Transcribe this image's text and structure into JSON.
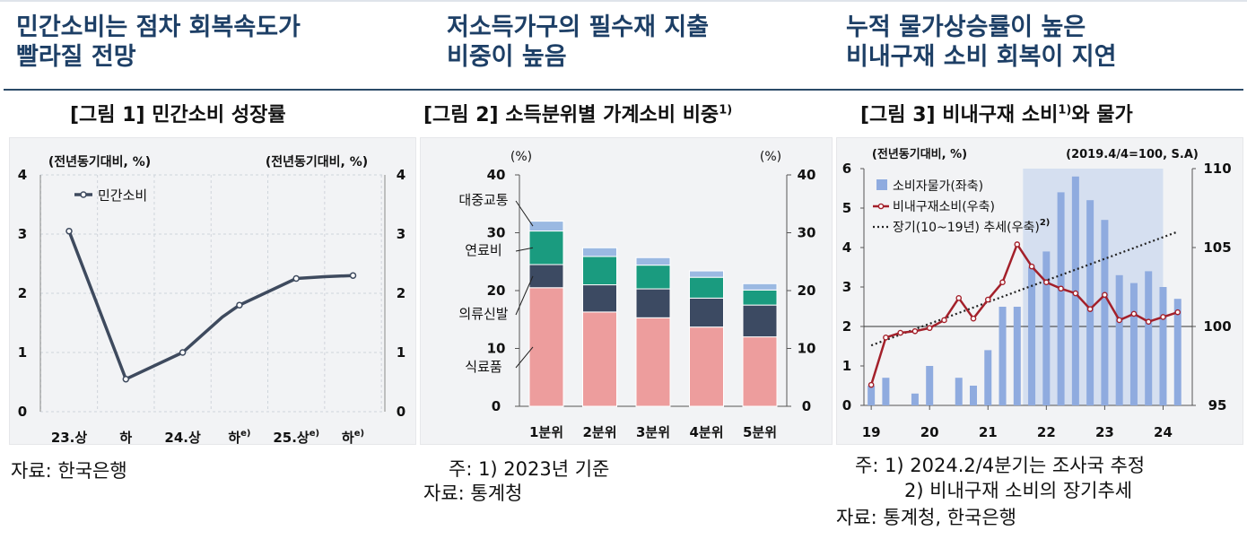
{
  "headlines": [
    {
      "line1": "민간소비는 점차 회복속도가",
      "line2": "빨라질 전망"
    },
    {
      "line1": "저소득가구의 필수재 지출",
      "line2": "비중이 높음"
    },
    {
      "line1": "누적 물가상승률이 높은",
      "line2": "비내구재 소비 회복이 지연"
    }
  ],
  "figures": [
    {
      "title": "[그림 1] 민간소비 성장률",
      "sup": ""
    },
    {
      "title": "[그림 2] 소득분위별 가계소비 비중",
      "sup": "1)"
    },
    {
      "title_a": "[그림 3] 비내구재 소비",
      "sup": "1)",
      "title_b": "와 물가"
    }
  ],
  "notes": {
    "fig1_source": "자료: 한국은행",
    "fig2_note": "주: 1) 2023년 기준",
    "fig2_source": "자료: 통계청",
    "fig3_note1": "주: 1) 2024.2/4분기는 조사국 추정",
    "fig3_note2": "2) 비내구재 소비의 장기추세",
    "fig3_source": "자료: 통계청, 한국은행"
  },
  "colors": {
    "line_dark": "#3e4a5e",
    "bar_food": "#ed9d9d",
    "bar_clothing": "#3c4a62",
    "bar_fuel": "#1a9b7f",
    "bar_transit": "#9bb9e2",
    "bar_cpi": "#8fabdf",
    "line_consumption": "#a3202a",
    "shade": "#d5dff0",
    "headline": "#1d3f66"
  },
  "chart_data": [
    {
      "type": "line",
      "title": "[그림 1] 민간소비 성장률",
      "ylabel_left": "(전년동기대비, %)",
      "ylabel_right": "(전년동기대비, %)",
      "ylim": [
        0,
        4
      ],
      "yticks": [
        "0",
        "1",
        "2",
        "3",
        "4"
      ],
      "categories": [
        "23.상",
        "하",
        "24.상",
        "하",
        "25.상",
        "하"
      ],
      "category_sups": [
        "",
        "",
        "",
        "e)",
        "e)",
        "e)"
      ],
      "series": [
        {
          "name": "민간소비",
          "x": [
            0.0,
            1.0,
            2.0,
            2.7,
            3.0,
            4.0,
            4.5,
            5.0
          ],
          "values": [
            3.05,
            0.55,
            1.0,
            1.6,
            1.8,
            2.25,
            2.28,
            2.3
          ]
        }
      ],
      "marker_index": [
        0,
        1,
        2,
        4,
        5,
        7
      ],
      "legend": "top-left",
      "grid": true
    },
    {
      "type": "bar",
      "stacked": true,
      "title": "[그림 2] 소득분위별 가계소비 비중",
      "ylabel_left": "(%)",
      "ylabel_right": "(%)",
      "ylim": [
        0,
        40
      ],
      "yticks": [
        "0",
        "10",
        "20",
        "30",
        "40"
      ],
      "categories": [
        "1분위",
        "2분위",
        "3분위",
        "4분위",
        "5분위"
      ],
      "series": [
        {
          "name": "식료품",
          "values": [
            20.5,
            16.3,
            15.3,
            13.7,
            12.0
          ]
        },
        {
          "name": "의류신발",
          "values": [
            4.0,
            4.7,
            5.0,
            5.0,
            5.5
          ]
        },
        {
          "name": "연료비",
          "values": [
            5.8,
            4.9,
            4.1,
            3.6,
            2.6
          ]
        },
        {
          "name": "대중교통",
          "values": [
            1.7,
            1.5,
            1.3,
            1.1,
            1.1
          ]
        }
      ],
      "grid": false
    },
    {
      "type": "bar+line",
      "title": "[그림 3] 비내구재 소비와 물가",
      "ylabel_left": "(전년동기대비, %)",
      "ylabel_right": "(2019.4/4=100, S.A)",
      "ylim_left": [
        0,
        6
      ],
      "yticks_left": [
        "0",
        "1",
        "2",
        "3",
        "4",
        "5",
        "6"
      ],
      "ylim_right": [
        95,
        110
      ],
      "yticks_right": [
        "95",
        "100",
        "105",
        "110"
      ],
      "x_ticks": [
        "19",
        "20",
        "21",
        "22",
        "23",
        "24"
      ],
      "shaded_period": "2021.3Q - 2023.4Q",
      "series": [
        {
          "name": "소비자물가(좌축)",
          "kind": "bar",
          "x": [
            2019.0,
            2019.25,
            2019.5,
            2019.75,
            2020.0,
            2020.25,
            2020.5,
            2020.75,
            2021.0,
            2021.25,
            2021.5,
            2021.75,
            2022.0,
            2022.25,
            2022.5,
            2022.75,
            2023.0,
            2023.25,
            2023.5,
            2023.75,
            2024.0,
            2024.25
          ],
          "values": [
            0.5,
            0.7,
            0.0,
            0.3,
            1.0,
            0.0,
            0.7,
            0.5,
            1.4,
            2.5,
            2.5,
            3.5,
            3.9,
            5.4,
            5.8,
            5.2,
            4.7,
            3.3,
            3.1,
            3.4,
            3.0,
            2.7
          ]
        },
        {
          "name": "비내구재소비(우축)",
          "kind": "line",
          "x": [
            2019.0,
            2019.25,
            2019.5,
            2019.75,
            2020.0,
            2020.25,
            2020.5,
            2020.75,
            2021.0,
            2021.25,
            2021.5,
            2021.75,
            2022.0,
            2022.25,
            2022.5,
            2022.75,
            2023.0,
            2023.25,
            2023.5,
            2023.75,
            2024.0,
            2024.25
          ],
          "values": [
            96.3,
            99.3,
            99.6,
            99.7,
            99.9,
            100.4,
            101.8,
            100.5,
            101.7,
            102.8,
            105.2,
            103.8,
            102.8,
            102.4,
            102.1,
            101.1,
            102.0,
            100.4,
            100.8,
            100.3,
            100.6,
            100.9
          ]
        },
        {
          "name": "장기(10~19년) 추세(우축)",
          "sup": "2)",
          "kind": "dotted",
          "x": [
            2019.0,
            2024.25
          ],
          "values": [
            98.8,
            106.0
          ]
        }
      ],
      "legend": "top-left"
    }
  ]
}
